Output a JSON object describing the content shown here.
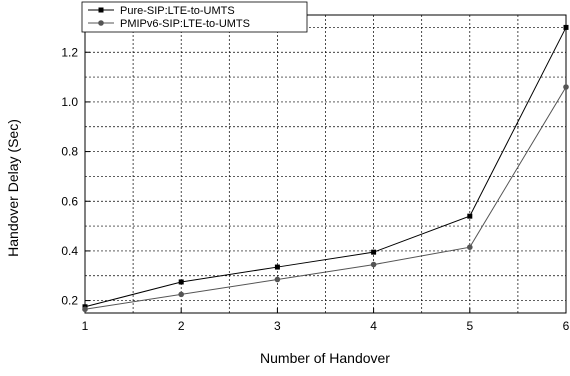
{
  "chart_data": {
    "type": "line",
    "title": "",
    "xlabel": "Number of Handover",
    "ylabel": "Handover Delay (Sec)",
    "x": [
      1,
      2,
      3,
      4,
      5,
      6
    ],
    "xlim": [
      1,
      6
    ],
    "ylim": [
      0.15,
      1.35
    ],
    "xticks": [
      1,
      2,
      3,
      4,
      5,
      6
    ],
    "yticks": [
      0.2,
      0.4,
      0.6,
      0.8,
      1.0,
      1.2
    ],
    "ytick_labels": [
      "0.2",
      "0.4",
      "0.6",
      "0.8",
      "1.0",
      "1.2"
    ],
    "grid": true,
    "legend_position": "top-left",
    "series": [
      {
        "name": "Pure-SIP:LTE-to-UMTS",
        "marker": "square",
        "color": "#000000",
        "values": [
          0.175,
          0.275,
          0.335,
          0.395,
          0.54,
          1.3
        ]
      },
      {
        "name": "PMIPv6-SIP:LTE-to-UMTS",
        "marker": "circle",
        "color": "#555555",
        "values": [
          0.165,
          0.225,
          0.285,
          0.345,
          0.415,
          1.06
        ]
      }
    ]
  }
}
